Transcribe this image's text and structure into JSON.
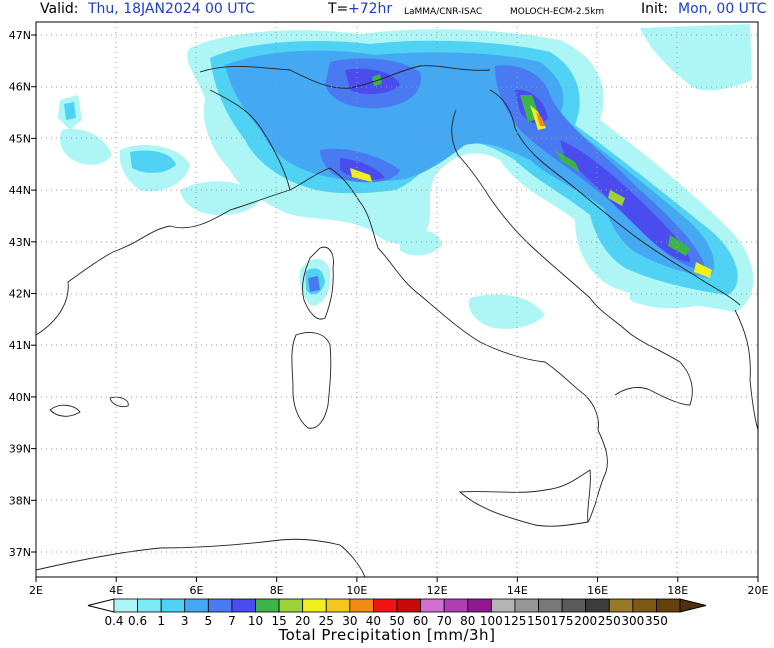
{
  "header": {
    "valid_label": "Valid:",
    "valid_value": "Thu, 18JAN2024   00 UTC",
    "t_label": "T=",
    "t_value": "+72hr",
    "source": "LaMMA/CNR-ISAC",
    "model": "MOLOCH-ECM-2.5km",
    "init_label": "Init:",
    "init_value": "Mon, 00 UTC"
  },
  "axes": {
    "lon_labels": [
      "2E",
      "4E",
      "6E",
      "8E",
      "10E",
      "12E",
      "14E",
      "16E",
      "18E",
      "20E"
    ],
    "lat_labels": [
      "47N",
      "46N",
      "45N",
      "44N",
      "43N",
      "42N",
      "41N",
      "40N",
      "39N",
      "38N",
      "37N"
    ]
  },
  "colorbar": {
    "title": "Total Precipitation [mm/3h]",
    "labels": [
      "0.4",
      "0.6",
      "1",
      "3",
      "5",
      "7",
      "10",
      "15",
      "20",
      "25",
      "30",
      "40",
      "50",
      "60",
      "70",
      "80",
      "100",
      "125",
      "150",
      "175",
      "200",
      "250",
      "300",
      "350"
    ],
    "colors": [
      "#aef6f6",
      "#7eeaf6",
      "#4fd2f4",
      "#44a8f2",
      "#4a7af2",
      "#4a4cf0",
      "#3cb44a",
      "#9ed23a",
      "#f0f01e",
      "#f2c81e",
      "#f28c14",
      "#ee1414",
      "#c80a0a",
      "#d070d0",
      "#b040b0",
      "#901890",
      "#b4b4b4",
      "#969696",
      "#787878",
      "#5a5a5a",
      "#3c3c3c",
      "#967828",
      "#7d5a14",
      "#64400a",
      "#50300a"
    ]
  }
}
